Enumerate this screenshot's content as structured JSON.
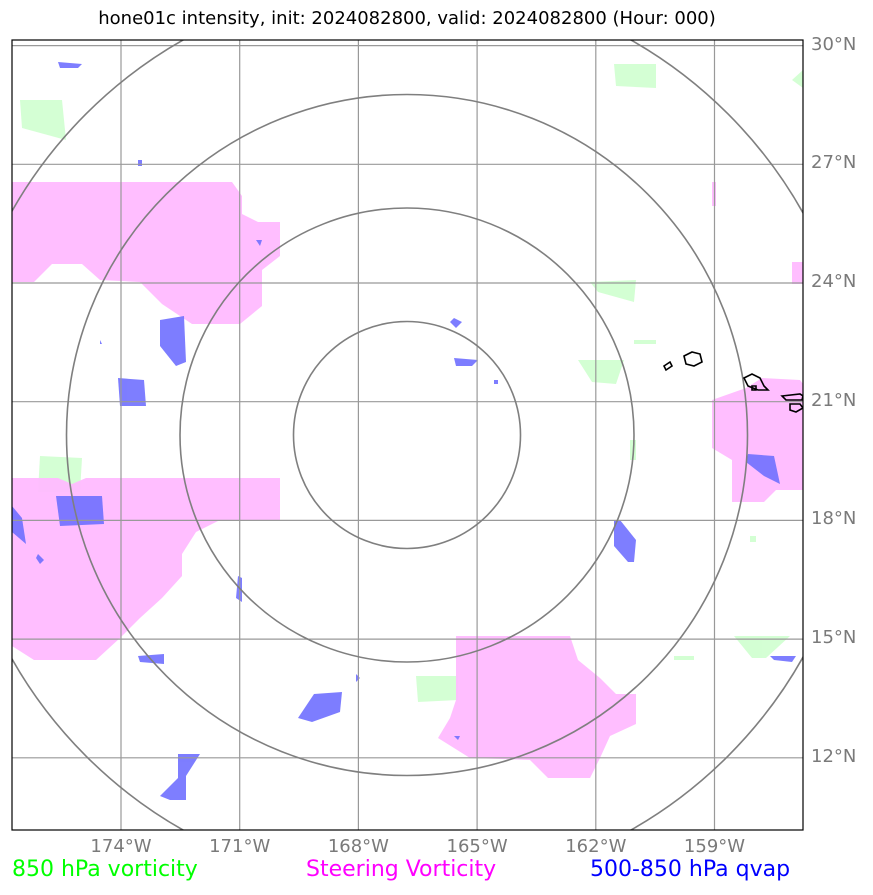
{
  "title": "hone01c intensity, init: 2024082800, valid: 2024082800 (Hour: 000)",
  "lon_labels": [
    "174°W",
    "171°W",
    "168°W",
    "165°W",
    "162°W",
    "159°W"
  ],
  "lat_labels": [
    "30°N",
    "27°N",
    "24°N",
    "21°N",
    "18°N",
    "15°N",
    "12°N"
  ],
  "legend": {
    "vort850": {
      "label": "850 hPa vorticity",
      "color": "#00ff00"
    },
    "steering": {
      "label": "Steering Vorticity",
      "color": "#ff00ff"
    },
    "qvap": {
      "label": "500-850 hPa qvap",
      "color": "#0000ff"
    }
  },
  "colors": {
    "vort850_fill": "#ccffcc",
    "steering_fill": "#ffbbff",
    "qvap_fill": "#7070ff",
    "grid": "#999999",
    "range_rings": "#7f7f7f",
    "coastline": "#000000"
  },
  "map": {
    "extent": {
      "lon_min": -176.8,
      "lon_max": -156.8,
      "lat_min": 10.2,
      "lat_max": 30.2
    },
    "center": {
      "lon": -166.8,
      "lat": 20.2
    },
    "ring_count": 4
  }
}
